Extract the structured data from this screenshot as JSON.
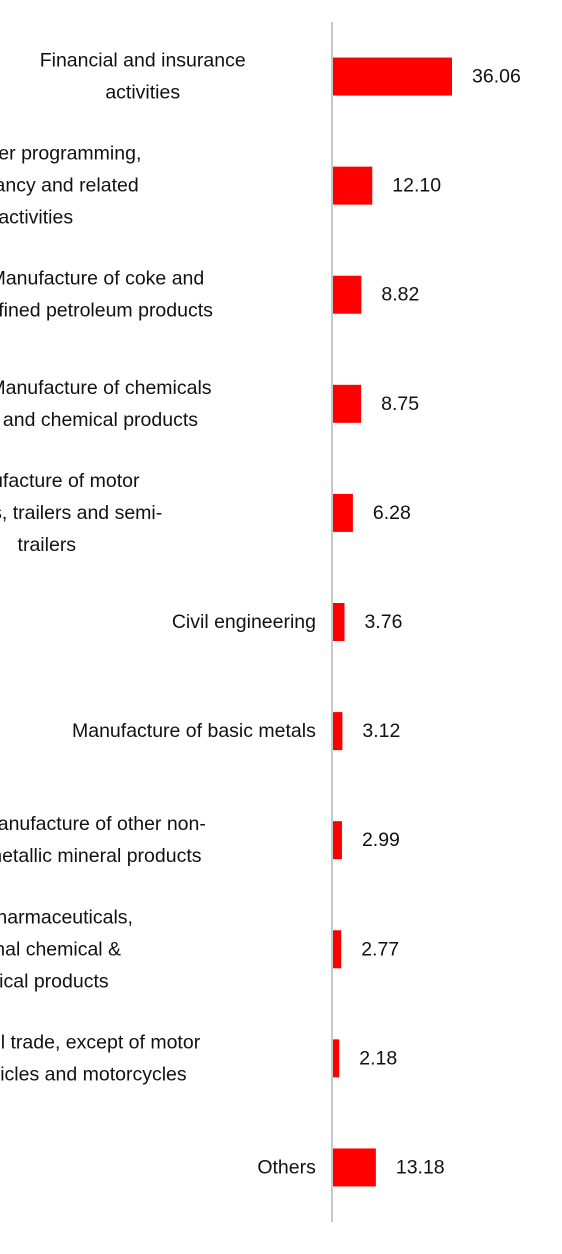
{
  "chart_data": {
    "type": "bar",
    "orientation": "horizontal",
    "categories": [
      [
        "Financial and insurance",
        "activities"
      ],
      [
        "Computer programming,",
        "consultancy and related",
        "activities"
      ],
      [
        "Manufacture of coke and",
        "refined petroleum products"
      ],
      [
        "Manufacture of chemicals",
        "and chemical products"
      ],
      [
        "Manufacture of motor",
        "vehicles, trailers and semi-",
        "trailers"
      ],
      [
        "Civil engineering"
      ],
      [
        "Manufacture of basic metals"
      ],
      [
        "Manufacture of other non-",
        "metallic mineral products"
      ],
      [
        "Mfg of pharmaceuticals,",
        "medicinal chemical &",
        "botanical products"
      ],
      [
        "Retail trade, except of motor",
        "vehicles and motorcycles"
      ],
      [
        "Others"
      ]
    ],
    "values": [
      36.06,
      12.1,
      8.82,
      8.75,
      6.28,
      3.76,
      3.12,
      2.99,
      2.77,
      2.18,
      13.18
    ],
    "value_labels": [
      "36.06",
      "12.10",
      "8.82",
      "8.75",
      "6.28",
      "3.76",
      "3.12",
      "2.99",
      "2.77",
      "2.18",
      "13.18"
    ],
    "bar_color": "#ff0000",
    "axis_color": "#c8c8c8",
    "grid": false,
    "legend": "none"
  }
}
